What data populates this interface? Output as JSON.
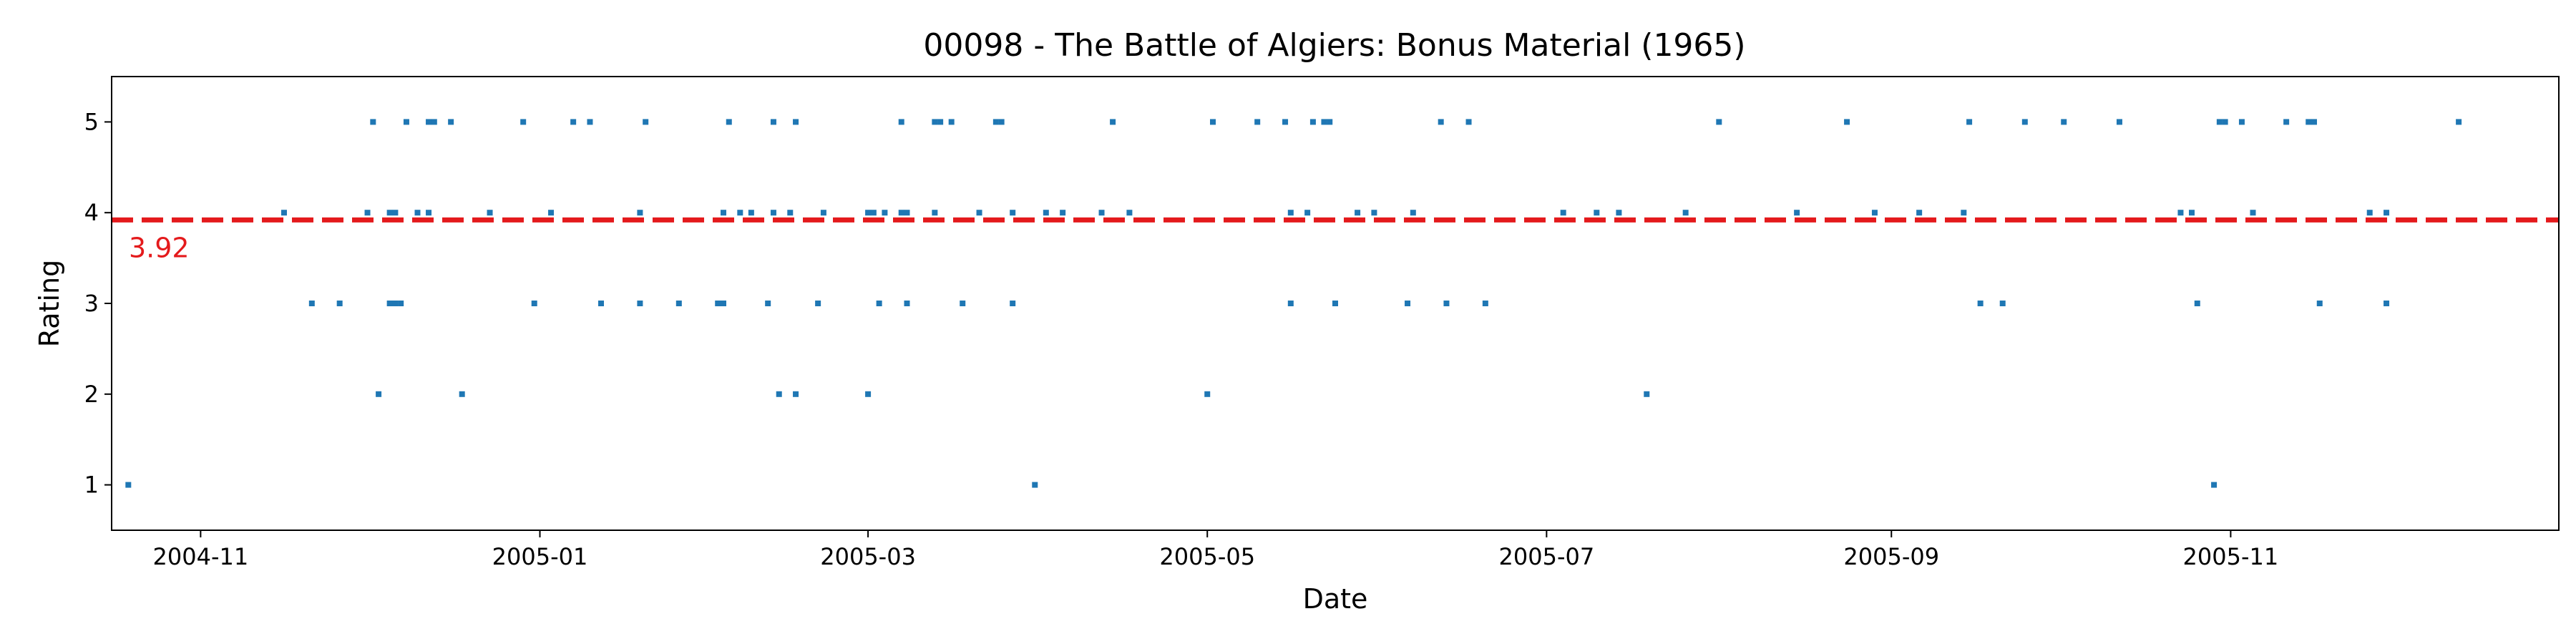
{
  "chart_data": {
    "type": "scatter",
    "title": "00098 - The Battle of Algiers: Bonus Material (1965)",
    "xlabel": "Date",
    "ylabel": "Rating",
    "xlim": [
      "2004-10-16",
      "2005-12-30"
    ],
    "ylim": [
      0.5,
      5.5
    ],
    "x_ticks": [
      "2004-11-01",
      "2005-01-01",
      "2005-03-01",
      "2005-05-01",
      "2005-07-01",
      "2005-09-01",
      "2005-11-01"
    ],
    "x_tick_labels": [
      "2004-11",
      "2005-01",
      "2005-03",
      "2005-05",
      "2005-07",
      "2005-09",
      "2005-11"
    ],
    "y_ticks": [
      1,
      2,
      3,
      4,
      5
    ],
    "grid": false,
    "point_color": "#1f77b4",
    "mean": {
      "value": 3.92,
      "label": "3.92",
      "color": "#e41a1c",
      "style": "dashed"
    },
    "series": [
      {
        "points": [
          [
            "2004-10-19",
            1
          ],
          [
            "2004-11-16",
            4
          ],
          [
            "2004-11-21",
            3
          ],
          [
            "2004-11-26",
            3
          ],
          [
            "2004-12-01",
            4
          ],
          [
            "2004-12-02",
            5
          ],
          [
            "2004-12-03",
            2
          ],
          [
            "2004-12-05",
            4
          ],
          [
            "2004-12-05",
            3
          ],
          [
            "2004-12-06",
            4
          ],
          [
            "2004-12-06",
            3
          ],
          [
            "2004-12-07",
            3
          ],
          [
            "2004-12-08",
            5
          ],
          [
            "2004-12-10",
            4
          ],
          [
            "2004-12-12",
            4
          ],
          [
            "2004-12-12",
            5
          ],
          [
            "2004-12-13",
            5
          ],
          [
            "2004-12-16",
            5
          ],
          [
            "2004-12-18",
            2
          ],
          [
            "2004-12-23",
            4
          ],
          [
            "2004-12-29",
            5
          ],
          [
            "2004-12-31",
            3
          ],
          [
            "2005-01-03",
            4
          ],
          [
            "2005-01-07",
            5
          ],
          [
            "2005-01-10",
            5
          ],
          [
            "2005-01-12",
            3
          ],
          [
            "2005-01-19",
            3
          ],
          [
            "2005-01-19",
            4
          ],
          [
            "2005-01-20",
            5
          ],
          [
            "2005-01-26",
            3
          ],
          [
            "2005-02-02",
            3
          ],
          [
            "2005-02-03",
            4
          ],
          [
            "2005-02-03",
            3
          ],
          [
            "2005-02-04",
            5
          ],
          [
            "2005-02-06",
            4
          ],
          [
            "2005-02-08",
            4
          ],
          [
            "2005-02-11",
            3
          ],
          [
            "2005-02-12",
            4
          ],
          [
            "2005-02-12",
            5
          ],
          [
            "2005-02-13",
            2
          ],
          [
            "2005-02-15",
            4
          ],
          [
            "2005-02-16",
            2
          ],
          [
            "2005-02-16",
            5
          ],
          [
            "2005-02-20",
            3
          ],
          [
            "2005-02-21",
            4
          ],
          [
            "2005-03-01",
            4
          ],
          [
            "2005-03-01",
            2
          ],
          [
            "2005-03-02",
            4
          ],
          [
            "2005-03-03",
            3
          ],
          [
            "2005-03-04",
            4
          ],
          [
            "2005-03-07",
            5
          ],
          [
            "2005-03-07",
            4
          ],
          [
            "2005-03-08",
            3
          ],
          [
            "2005-03-08",
            4
          ],
          [
            "2005-03-13",
            4
          ],
          [
            "2005-03-13",
            5
          ],
          [
            "2005-03-14",
            5
          ],
          [
            "2005-03-16",
            5
          ],
          [
            "2005-03-18",
            3
          ],
          [
            "2005-03-21",
            4
          ],
          [
            "2005-03-24",
            5
          ],
          [
            "2005-03-25",
            5
          ],
          [
            "2005-03-27",
            4
          ],
          [
            "2005-03-27",
            3
          ],
          [
            "2005-03-31",
            1
          ],
          [
            "2005-04-02",
            4
          ],
          [
            "2005-04-05",
            4
          ],
          [
            "2005-04-12",
            4
          ],
          [
            "2005-04-14",
            5
          ],
          [
            "2005-04-17",
            4
          ],
          [
            "2005-05-01",
            2
          ],
          [
            "2005-05-02",
            5
          ],
          [
            "2005-05-10",
            5
          ],
          [
            "2005-05-15",
            5
          ],
          [
            "2005-05-16",
            4
          ],
          [
            "2005-05-16",
            3
          ],
          [
            "2005-05-19",
            4
          ],
          [
            "2005-05-20",
            5
          ],
          [
            "2005-05-22",
            5
          ],
          [
            "2005-05-23",
            5
          ],
          [
            "2005-05-24",
            3
          ],
          [
            "2005-05-28",
            4
          ],
          [
            "2005-05-31",
            4
          ],
          [
            "2005-06-06",
            3
          ],
          [
            "2005-06-07",
            4
          ],
          [
            "2005-06-12",
            5
          ],
          [
            "2005-06-13",
            3
          ],
          [
            "2005-06-17",
            5
          ],
          [
            "2005-06-20",
            3
          ],
          [
            "2005-07-04",
            4
          ],
          [
            "2005-07-10",
            4
          ],
          [
            "2005-07-14",
            4
          ],
          [
            "2005-07-19",
            2
          ],
          [
            "2005-07-26",
            4
          ],
          [
            "2005-08-01",
            5
          ],
          [
            "2005-08-15",
            4
          ],
          [
            "2005-08-24",
            5
          ],
          [
            "2005-08-29",
            4
          ],
          [
            "2005-09-06",
            4
          ],
          [
            "2005-09-14",
            4
          ],
          [
            "2005-09-15",
            5
          ],
          [
            "2005-09-17",
            3
          ],
          [
            "2005-09-21",
            3
          ],
          [
            "2005-09-25",
            5
          ],
          [
            "2005-10-02",
            5
          ],
          [
            "2005-10-12",
            5
          ],
          [
            "2005-10-23",
            4
          ],
          [
            "2005-10-25",
            4
          ],
          [
            "2005-10-26",
            3
          ],
          [
            "2005-10-29",
            1
          ],
          [
            "2005-10-30",
            5
          ],
          [
            "2005-10-31",
            5
          ],
          [
            "2005-11-03",
            5
          ],
          [
            "2005-11-05",
            4
          ],
          [
            "2005-11-11",
            5
          ],
          [
            "2005-11-15",
            5
          ],
          [
            "2005-11-16",
            5
          ],
          [
            "2005-11-17",
            3
          ],
          [
            "2005-11-26",
            4
          ],
          [
            "2005-11-29",
            3
          ],
          [
            "2005-11-29",
            4
          ],
          [
            "2005-12-12",
            5
          ]
        ]
      }
    ]
  }
}
